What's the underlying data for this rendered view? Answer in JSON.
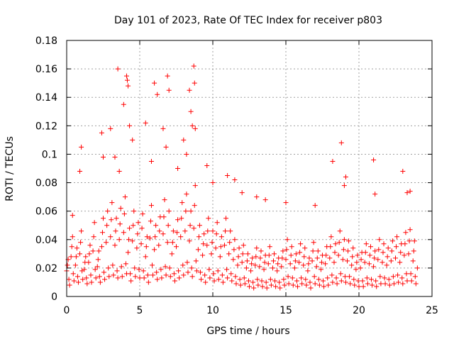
{
  "chart_data": {
    "type": "scatter",
    "title": "Day 101 of 2023, Rate Of TEC Index for receiver p803",
    "xlabel": "GPS time / hours",
    "ylabel": "ROTI / TECUs",
    "xlim": [
      0,
      25
    ],
    "ylim": [
      0,
      0.18
    ],
    "x_ticks": [
      0,
      5,
      10,
      15,
      20,
      25
    ],
    "x_tick_labels": [
      "0",
      "5",
      "10",
      "15",
      "20",
      "25"
    ],
    "y_ticks": [
      0,
      0.02,
      0.04,
      0.06,
      0.08,
      0.1,
      0.12,
      0.14,
      0.16,
      0.18
    ],
    "y_tick_labels": [
      "0",
      "0.02",
      "0.04",
      "0.06",
      "0.08",
      "0.1",
      "0.12",
      "0.14",
      "0.16",
      "0.18"
    ],
    "grid": true,
    "marker": "+",
    "marker_color": "#ff0000",
    "series": [
      {
        "name": "ROTI",
        "x": [
          0.0,
          0.3,
          0.6,
          0.9,
          1.2,
          1.5,
          1.8,
          2.1,
          2.4,
          2.7,
          3.0,
          3.3,
          3.6,
          3.9,
          4.2,
          4.5,
          4.8,
          5.1,
          5.4,
          5.7,
          6.0,
          6.3,
          6.6,
          6.9,
          7.2,
          7.5,
          7.8,
          8.1,
          8.4,
          8.7,
          9.0,
          9.3,
          9.6,
          9.9,
          10.2,
          10.5,
          10.8,
          11.1,
          11.4,
          11.7,
          12.0,
          12.3,
          12.6,
          12.9,
          13.2,
          13.5,
          13.8,
          14.1,
          14.4,
          14.7,
          15.0,
          15.3,
          15.6,
          15.9,
          16.2,
          16.5,
          16.8,
          17.1,
          17.4,
          17.7,
          18.0,
          18.3,
          18.6,
          18.9,
          19.2,
          19.5,
          19.8,
          20.1,
          20.4,
          20.7,
          21.0,
          21.3,
          21.6,
          21.9,
          22.2,
          22.5,
          22.8,
          23.1,
          23.4,
          23.7,
          24.0,
          0.15,
          0.45,
          0.75,
          1.05,
          1.35,
          1.65,
          1.95,
          2.25,
          2.55,
          2.85,
          3.15,
          3.45,
          3.75,
          4.05,
          4.35,
          4.65,
          4.95,
          5.25,
          5.55,
          5.85,
          6.15,
          6.45,
          6.75,
          7.05,
          7.35,
          7.65,
          7.95,
          8.25,
          8.55,
          8.85,
          9.15,
          9.45,
          9.75,
          10.05,
          10.35,
          10.65,
          10.95,
          11.25,
          11.55,
          11.85,
          12.15,
          12.45,
          12.75,
          13.05,
          13.35,
          13.65,
          13.95,
          14.25,
          14.55,
          14.85,
          15.15,
          15.45,
          15.75,
          16.05,
          16.35,
          16.65,
          16.95,
          17.25,
          17.55,
          17.85,
          18.15,
          18.45,
          18.75,
          19.05,
          19.35,
          19.65,
          19.95,
          20.25,
          20.55,
          20.85,
          21.15,
          21.45,
          21.75,
          22.05,
          22.35,
          22.65,
          22.95,
          23.25,
          23.55,
          23.85,
          0.1,
          0.4,
          0.7,
          1.0,
          1.3,
          1.6,
          1.9,
          2.2,
          2.5,
          2.8,
          3.1,
          3.4,
          3.7,
          4.0,
          4.3,
          4.6,
          4.9,
          5.2,
          5.5,
          5.8,
          6.1,
          6.4,
          6.7,
          7.0,
          7.3,
          7.6,
          7.9,
          8.2,
          8.5,
          8.8,
          9.1,
          9.4,
          9.7,
          10.0,
          10.3,
          10.6,
          10.9,
          11.2,
          11.5,
          11.8,
          12.1,
          12.4,
          12.7,
          13.0,
          13.3,
          13.6,
          13.9,
          14.2,
          14.5,
          14.8,
          15.1,
          15.4,
          15.7,
          16.0,
          16.3,
          16.6,
          16.9,
          17.2,
          17.5,
          17.8,
          18.1,
          18.4,
          18.7,
          19.0,
          19.3,
          19.6,
          19.9,
          20.2,
          20.5,
          20.8,
          21.1,
          21.4,
          21.7,
          22.0,
          22.3,
          22.6,
          22.9,
          23.2,
          23.5,
          23.8,
          0.2,
          0.5,
          0.8,
          1.1,
          1.4,
          1.7,
          2.0,
          2.3,
          2.6,
          2.9,
          3.2,
          3.5,
          3.8,
          4.1,
          4.4,
          4.7,
          5.0,
          5.3,
          5.6,
          5.9,
          6.2,
          6.5,
          6.8,
          7.1,
          7.4,
          7.7,
          8.0,
          8.3,
          8.6,
          8.9,
          9.2,
          9.5,
          9.8,
          10.1,
          10.4,
          10.7,
          11.0,
          11.3,
          11.6,
          11.9,
          12.2,
          12.5,
          12.8,
          13.1,
          13.4,
          13.7,
          14.0,
          14.3,
          14.6,
          14.9,
          15.2,
          15.5,
          15.8,
          16.1,
          16.4,
          16.7,
          17.0,
          17.3,
          17.6,
          17.9,
          18.2,
          18.5,
          18.8,
          19.1,
          19.4,
          19.7,
          20.0,
          20.3,
          20.6,
          20.9,
          21.2,
          21.5,
          21.8,
          22.1,
          22.4,
          22.7,
          23.0,
          23.3,
          23.6,
          23.9,
          0.05,
          0.35,
          0.65,
          0.95,
          1.25,
          1.55,
          1.85,
          2.15,
          2.45,
          2.75,
          3.05,
          3.35,
          3.65,
          3.95,
          4.25,
          4.55,
          4.85,
          5.15,
          5.45,
          5.75,
          6.05,
          6.35,
          6.65,
          6.95,
          7.25,
          7.55,
          7.85,
          8.15,
          8.45,
          8.75,
          9.05,
          9.35,
          9.65,
          9.95,
          10.25,
          10.55,
          10.85,
          11.15,
          11.45,
          11.75,
          12.05,
          12.35,
          12.65,
          12.95,
          13.25,
          13.55,
          13.85,
          14.15,
          14.45,
          14.75,
          15.05,
          15.35,
          15.65,
          15.95,
          16.25,
          16.55,
          16.85,
          17.15,
          17.45,
          17.75,
          18.05,
          18.35,
          18.65,
          18.95,
          19.25,
          19.55,
          19.85,
          20.15,
          20.45,
          20.75,
          21.05,
          21.35,
          21.65,
          21.95,
          22.25,
          22.55,
          22.85,
          23.15,
          23.45,
          23.75,
          0.4,
          0.9,
          1.0,
          2.4,
          2.5,
          3.0,
          3.3,
          3.5,
          3.6,
          3.9,
          4.1,
          4.15,
          4.2,
          4.3,
          4.5,
          5.4,
          5.8,
          6.0,
          6.2,
          6.6,
          6.8,
          6.9,
          7.0,
          7.6,
          8.0,
          8.2,
          8.4,
          8.5,
          8.6,
          8.7,
          8.75,
          8.8,
          9.6,
          10.0,
          11.0,
          11.5,
          12.0,
          13.0,
          13.6,
          15.0,
          17.0,
          18.2,
          18.8,
          19.0,
          19.1,
          21.0,
          21.1,
          23.0,
          23.3,
          23.5
        ],
        "y": [
          0.018,
          0.028,
          0.022,
          0.03,
          0.019,
          0.024,
          0.032,
          0.021,
          0.035,
          0.038,
          0.042,
          0.036,
          0.04,
          0.045,
          0.031,
          0.039,
          0.034,
          0.037,
          0.028,
          0.041,
          0.033,
          0.036,
          0.044,
          0.038,
          0.03,
          0.035,
          0.042,
          0.046,
          0.039,
          0.048,
          0.033,
          0.029,
          0.036,
          0.03,
          0.034,
          0.028,
          0.036,
          0.03,
          0.026,
          0.022,
          0.024,
          0.02,
          0.018,
          0.022,
          0.021,
          0.019,
          0.023,
          0.02,
          0.018,
          0.021,
          0.026,
          0.023,
          0.02,
          0.024,
          0.022,
          0.018,
          0.025,
          0.021,
          0.019,
          0.023,
          0.027,
          0.024,
          0.029,
          0.026,
          0.025,
          0.022,
          0.019,
          0.02,
          0.024,
          0.023,
          0.021,
          0.026,
          0.024,
          0.022,
          0.025,
          0.027,
          0.024,
          0.029,
          0.03,
          0.025,
          0.02,
          0.012,
          0.016,
          0.014,
          0.018,
          0.013,
          0.015,
          0.019,
          0.014,
          0.017,
          0.02,
          0.022,
          0.018,
          0.021,
          0.023,
          0.016,
          0.02,
          0.019,
          0.018,
          0.015,
          0.022,
          0.017,
          0.019,
          0.021,
          0.02,
          0.016,
          0.018,
          0.022,
          0.024,
          0.02,
          0.025,
          0.017,
          0.015,
          0.019,
          0.016,
          0.018,
          0.015,
          0.019,
          0.016,
          0.014,
          0.012,
          0.013,
          0.011,
          0.01,
          0.012,
          0.011,
          0.01,
          0.012,
          0.011,
          0.01,
          0.012,
          0.014,
          0.013,
          0.011,
          0.013,
          0.012,
          0.01,
          0.014,
          0.012,
          0.011,
          0.013,
          0.015,
          0.013,
          0.016,
          0.014,
          0.014,
          0.012,
          0.011,
          0.011,
          0.013,
          0.012,
          0.011,
          0.014,
          0.013,
          0.012,
          0.014,
          0.015,
          0.013,
          0.016,
          0.016,
          0.014,
          0.026,
          0.042,
          0.034,
          0.046,
          0.028,
          0.036,
          0.052,
          0.032,
          0.055,
          0.06,
          0.066,
          0.055,
          0.062,
          0.07,
          0.048,
          0.06,
          0.052,
          0.058,
          0.042,
          0.064,
          0.05,
          0.056,
          0.068,
          0.06,
          0.046,
          0.054,
          0.066,
          0.072,
          0.06,
          0.078,
          0.05,
          0.044,
          0.055,
          0.046,
          0.052,
          0.042,
          0.055,
          0.046,
          0.04,
          0.034,
          0.036,
          0.03,
          0.027,
          0.034,
          0.032,
          0.029,
          0.035,
          0.03,
          0.027,
          0.032,
          0.04,
          0.035,
          0.03,
          0.037,
          0.034,
          0.027,
          0.038,
          0.032,
          0.029,
          0.035,
          0.042,
          0.037,
          0.046,
          0.04,
          0.039,
          0.034,
          0.029,
          0.031,
          0.037,
          0.035,
          0.032,
          0.04,
          0.037,
          0.034,
          0.039,
          0.042,
          0.037,
          0.045,
          0.047,
          0.039,
          0.008,
          0.011,
          0.01,
          0.012,
          0.009,
          0.01,
          0.013,
          0.01,
          0.012,
          0.014,
          0.015,
          0.013,
          0.014,
          0.016,
          0.011,
          0.014,
          0.013,
          0.013,
          0.01,
          0.015,
          0.012,
          0.013,
          0.015,
          0.014,
          0.011,
          0.013,
          0.015,
          0.017,
          0.014,
          0.018,
          0.012,
          0.01,
          0.013,
          0.011,
          0.012,
          0.01,
          0.013,
          0.011,
          0.009,
          0.008,
          0.009,
          0.007,
          0.006,
          0.008,
          0.007,
          0.006,
          0.008,
          0.007,
          0.006,
          0.008,
          0.009,
          0.008,
          0.007,
          0.009,
          0.008,
          0.006,
          0.009,
          0.008,
          0.007,
          0.008,
          0.01,
          0.009,
          0.011,
          0.01,
          0.009,
          0.008,
          0.007,
          0.007,
          0.009,
          0.008,
          0.007,
          0.009,
          0.009,
          0.008,
          0.009,
          0.01,
          0.009,
          0.011,
          0.011,
          0.009,
          0.022,
          0.035,
          0.028,
          0.038,
          0.024,
          0.03,
          0.042,
          0.026,
          0.045,
          0.05,
          0.054,
          0.046,
          0.051,
          0.058,
          0.04,
          0.05,
          0.044,
          0.048,
          0.035,
          0.053,
          0.042,
          0.046,
          0.056,
          0.05,
          0.038,
          0.045,
          0.055,
          0.06,
          0.05,
          0.064,
          0.042,
          0.037,
          0.046,
          0.038,
          0.044,
          0.035,
          0.046,
          0.038,
          0.033,
          0.028,
          0.03,
          0.025,
          0.023,
          0.028,
          0.027,
          0.024,
          0.029,
          0.025,
          0.023,
          0.027,
          0.033,
          0.029,
          0.025,
          0.031,
          0.028,
          0.023,
          0.032,
          0.027,
          0.024,
          0.029,
          0.035,
          0.031,
          0.038,
          0.033,
          0.032,
          0.028,
          0.024,
          0.026,
          0.031,
          0.029,
          0.027,
          0.033,
          0.031,
          0.028,
          0.032,
          0.035,
          0.031,
          0.037,
          0.039,
          0.032,
          0.057,
          0.088,
          0.105,
          0.115,
          0.098,
          0.118,
          0.098,
          0.16,
          0.088,
          0.135,
          0.155,
          0.152,
          0.148,
          0.12,
          0.11,
          0.122,
          0.095,
          0.15,
          0.142,
          0.118,
          0.105,
          0.155,
          0.145,
          0.09,
          0.11,
          0.1,
          0.145,
          0.13,
          0.12,
          0.162,
          0.15,
          0.118,
          0.092,
          0.08,
          0.085,
          0.082,
          0.073,
          0.07,
          0.068,
          0.066,
          0.064,
          0.095,
          0.108,
          0.078,
          0.084,
          0.096,
          0.072,
          0.088,
          0.073,
          0.074
        ]
      }
    ]
  }
}
